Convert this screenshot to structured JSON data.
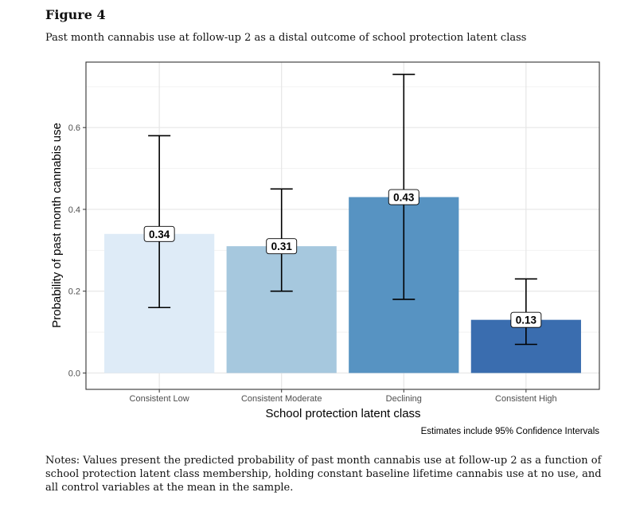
{
  "figure": {
    "label": "Figure 4",
    "title": "Past month cannabis use at follow-up 2 as a distal outcome of school protection latent class",
    "notes": "Notes: Values present the predicted probability of past month cannabis use at follow-up 2 as a function of school protection latent class membership, holding constant baseline lifetime cannabis use at no use, and all control variables at the mean in the sample."
  },
  "chart_data": {
    "type": "bar",
    "categories": [
      "Consistent Low",
      "Consistent Moderate",
      "Declining",
      "Consistent High"
    ],
    "values": [
      0.34,
      0.31,
      0.43,
      0.13
    ],
    "value_labels": [
      "0.34",
      "0.31",
      "0.43",
      "0.13"
    ],
    "ci_lower": [
      0.16,
      0.2,
      0.18,
      0.07
    ],
    "ci_upper": [
      0.58,
      0.45,
      0.73,
      0.23
    ],
    "bar_colors": [
      "#deebf7",
      "#a6c8de",
      "#5793c2",
      "#3a6daf"
    ],
    "xlabel": "School protection latent class",
    "ylabel": "Probability of past month cannabis use",
    "yticks": [
      0.0,
      0.2,
      0.4,
      0.6
    ],
    "ytick_labels": [
      "0.0",
      "0.2",
      "0.4",
      "0.6"
    ],
    "ylim": [
      -0.04,
      0.76
    ],
    "grid": true,
    "caption": "Estimates include 95% Confidence Intervals"
  }
}
